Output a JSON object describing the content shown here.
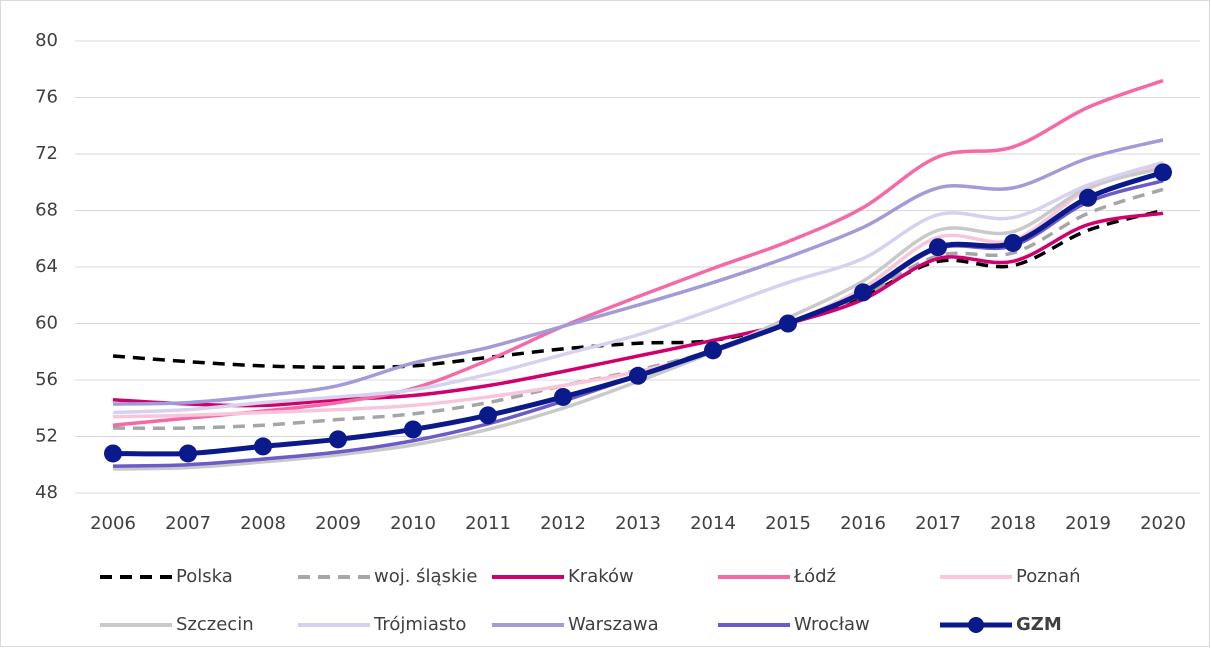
{
  "chart_data": {
    "type": "line",
    "categories": [
      "2006",
      "2007",
      "2008",
      "2009",
      "2010",
      "2011",
      "2012",
      "2013",
      "2014",
      "2015",
      "2016",
      "2017",
      "2018",
      "2019",
      "2020"
    ],
    "ylim": [
      48,
      80
    ],
    "yticks": [
      48,
      52,
      56,
      60,
      64,
      68,
      72,
      76,
      80
    ],
    "grid": true,
    "legend": "bottom",
    "series": [
      {
        "name": "Polska",
        "color": "#000000",
        "dash": true,
        "values": [
          57.7,
          57.3,
          57.0,
          56.9,
          57.0,
          57.6,
          58.2,
          58.6,
          58.8,
          60.0,
          61.9,
          64.4,
          64.1,
          66.6,
          68.0
        ]
      },
      {
        "name": "woj. śląskie",
        "color": "#a6a6a6",
        "dash": true,
        "values": [
          52.6,
          52.6,
          52.8,
          53.2,
          53.6,
          54.4,
          55.6,
          56.7,
          58.1,
          60.1,
          62.0,
          64.8,
          65.0,
          67.8,
          69.5
        ]
      },
      {
        "name": "Kraków",
        "color": "#d0006f",
        "values": [
          54.6,
          54.3,
          54.2,
          54.6,
          54.9,
          55.6,
          56.6,
          57.7,
          58.8,
          60.0,
          61.7,
          64.6,
          64.4,
          67.0,
          67.8
        ]
      },
      {
        "name": "Łódź",
        "color": "#f569a6",
        "values": [
          52.8,
          53.3,
          53.8,
          54.4,
          55.4,
          57.4,
          59.8,
          61.9,
          63.9,
          65.8,
          68.2,
          71.8,
          72.5,
          75.3,
          77.2
        ]
      },
      {
        "name": "Poznań",
        "color": "#f7c6dc",
        "values": [
          53.4,
          53.5,
          53.7,
          53.9,
          54.2,
          54.8,
          55.6,
          56.6,
          58.0,
          60.0,
          62.5,
          66.1,
          65.9,
          69.5,
          71.2
        ]
      },
      {
        "name": "Szczecin",
        "color": "#c9c9c9",
        "values": [
          49.7,
          49.8,
          50.2,
          50.7,
          51.4,
          52.5,
          54.0,
          55.9,
          58.0,
          60.4,
          63.0,
          66.6,
          66.5,
          69.6,
          71.0
        ]
      },
      {
        "name": "Trójmiasto",
        "color": "#d5d1ef",
        "values": [
          53.7,
          53.9,
          54.4,
          54.8,
          55.3,
          56.4,
          57.8,
          59.2,
          61.0,
          62.9,
          64.6,
          67.7,
          67.5,
          69.8,
          71.4
        ]
      },
      {
        "name": "Warszawa",
        "color": "#a19bd8",
        "values": [
          54.3,
          54.4,
          54.9,
          55.6,
          57.2,
          58.3,
          59.8,
          61.3,
          62.9,
          64.7,
          66.8,
          69.6,
          69.6,
          71.7,
          73.0
        ]
      },
      {
        "name": "Wrocław",
        "color": "#6b5bc8",
        "values": [
          49.9,
          50.0,
          50.4,
          50.9,
          51.7,
          52.9,
          54.5,
          56.3,
          58.0,
          60.0,
          62.1,
          65.3,
          65.5,
          68.6,
          70.1
        ]
      },
      {
        "name": "GZM",
        "color": "#0a1a8a",
        "marker": true,
        "values": [
          50.8,
          50.8,
          51.3,
          51.8,
          52.5,
          53.5,
          54.8,
          56.3,
          58.1,
          60.0,
          62.2,
          65.4,
          65.7,
          68.9,
          70.7
        ]
      }
    ]
  }
}
